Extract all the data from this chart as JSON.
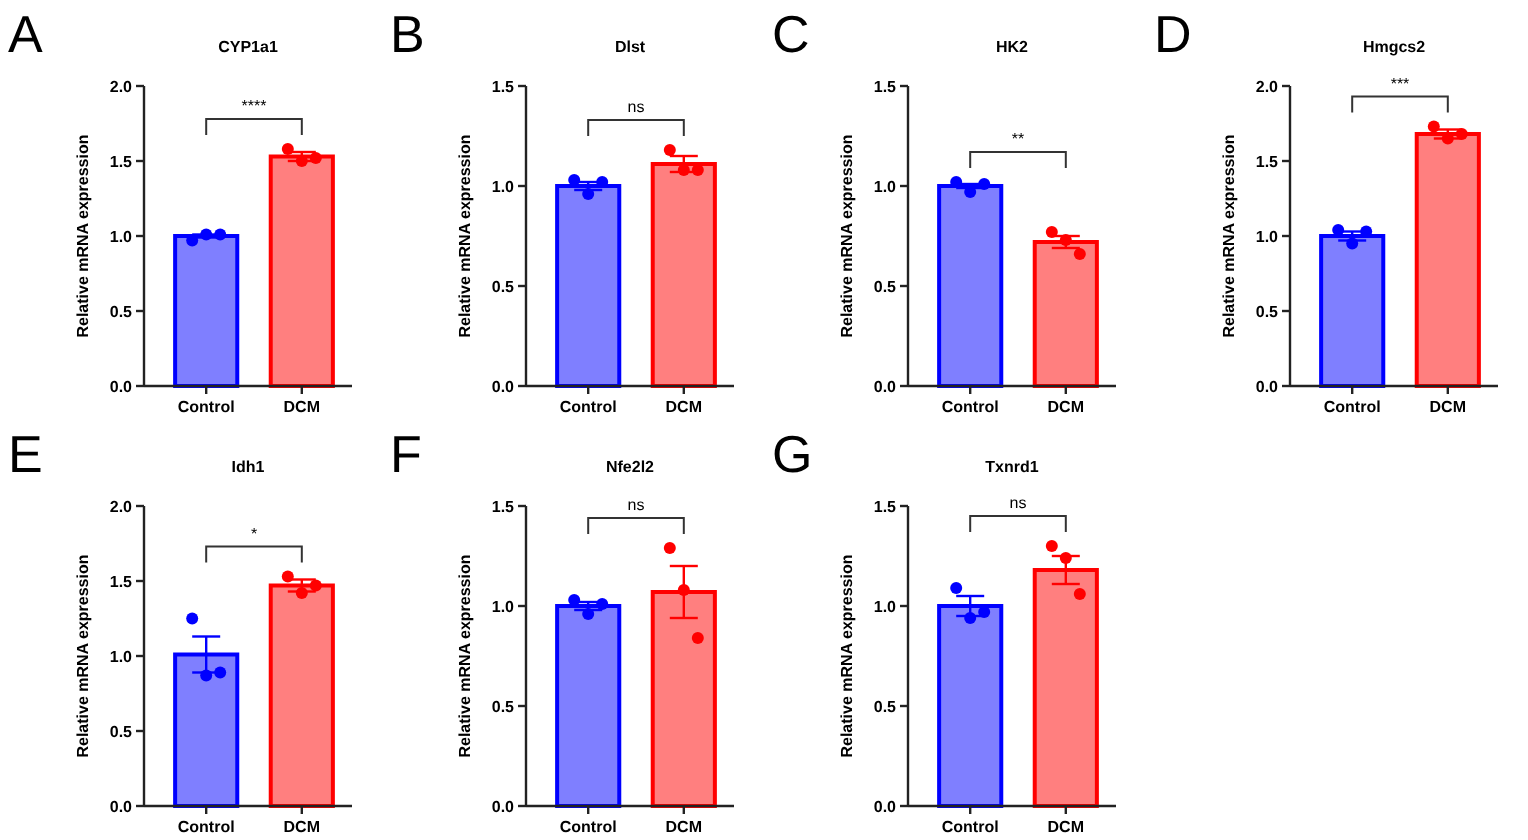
{
  "chart_data": [
    {
      "type": "bar",
      "title": "CYP1a1",
      "annotations": [
        "A",
        "****"
      ],
      "ylabel": "Relative mRNA expression",
      "categories": [
        "Control",
        "DCM"
      ],
      "ylim": [
        0,
        2
      ],
      "yticks": [
        {
          "value": 0,
          "label": "0.0"
        },
        {
          "value": 0.5,
          "label": "0.5"
        },
        {
          "value": 1,
          "label": "1.0"
        },
        {
          "value": 1.5,
          "label": "1.5"
        },
        {
          "value": 2,
          "label": "2.0"
        }
      ],
      "series": [
        {
          "type": "bar",
          "values": [
            1.0,
            1.53
          ],
          "colors": [
            "#0000ff",
            "#ff0000"
          ],
          "errors": [
            0.01,
            0.03
          ]
        },
        {
          "type": "scatter",
          "x": [
            "Control",
            "Control",
            "Control",
            "DCM",
            "DCM",
            "DCM"
          ],
          "values": [
            0.97,
            1.01,
            1.01,
            1.58,
            1.5,
            1.52
          ],
          "colors": [
            "#0000ff",
            "#0000ff",
            "#0000ff",
            "#ff0000",
            "#ff0000",
            "#ff0000"
          ]
        }
      ]
    },
    {
      "type": "bar",
      "title": "Dlst",
      "annotations": [
        "B",
        "ns"
      ],
      "ylabel": "Relative mRNA expression",
      "categories": [
        "Control",
        "DCM"
      ],
      "ylim": [
        0,
        1.5
      ],
      "yticks": [
        {
          "value": 0,
          "label": "0.0"
        },
        {
          "value": 0.5,
          "label": "0.5"
        },
        {
          "value": 1,
          "label": "1.0"
        },
        {
          "value": 1.5,
          "label": "1.5"
        }
      ],
      "series": [
        {
          "type": "bar",
          "values": [
            1.0,
            1.11
          ],
          "colors": [
            "#0000ff",
            "#ff0000"
          ],
          "errors": [
            0.02,
            0.04
          ]
        },
        {
          "type": "scatter",
          "x": [
            "Control",
            "Control",
            "Control",
            "DCM",
            "DCM",
            "DCM"
          ],
          "values": [
            1.03,
            0.96,
            1.02,
            1.18,
            1.08,
            1.08
          ],
          "colors": [
            "#0000ff",
            "#0000ff",
            "#0000ff",
            "#ff0000",
            "#ff0000",
            "#ff0000"
          ]
        }
      ]
    },
    {
      "type": "bar",
      "title": "HK2",
      "annotations": [
        "C",
        "**"
      ],
      "ylabel": "Relative mRNA expression",
      "categories": [
        "Control",
        "DCM"
      ],
      "ylim": [
        0,
        1.5
      ],
      "yticks": [
        {
          "value": 0,
          "label": "0.0"
        },
        {
          "value": 0.5,
          "label": "0.5"
        },
        {
          "value": 1,
          "label": "1.0"
        },
        {
          "value": 1.5,
          "label": "1.5"
        }
      ],
      "series": [
        {
          "type": "bar",
          "values": [
            1.0,
            0.72
          ],
          "colors": [
            "#0000ff",
            "#ff0000"
          ],
          "errors": [
            0.01,
            0.03
          ]
        },
        {
          "type": "scatter",
          "x": [
            "Control",
            "Control",
            "Control",
            "DCM",
            "DCM",
            "DCM"
          ],
          "values": [
            1.02,
            0.97,
            1.01,
            0.77,
            0.73,
            0.66
          ],
          "colors": [
            "#0000ff",
            "#0000ff",
            "#0000ff",
            "#ff0000",
            "#ff0000",
            "#ff0000"
          ]
        }
      ]
    },
    {
      "type": "bar",
      "title": "Hmgcs2",
      "annotations": [
        "D",
        "***"
      ],
      "ylabel": "Relative mRNA expression",
      "categories": [
        "Control",
        "DCM"
      ],
      "ylim": [
        0,
        2
      ],
      "yticks": [
        {
          "value": 0,
          "label": "0.0"
        },
        {
          "value": 0.5,
          "label": "0.5"
        },
        {
          "value": 1,
          "label": "1.0"
        },
        {
          "value": 1.5,
          "label": "1.5"
        },
        {
          "value": 2,
          "label": "2.0"
        }
      ],
      "series": [
        {
          "type": "bar",
          "values": [
            1.0,
            1.68
          ],
          "colors": [
            "#0000ff",
            "#ff0000"
          ],
          "errors": [
            0.03,
            0.03
          ]
        },
        {
          "type": "scatter",
          "x": [
            "Control",
            "Control",
            "Control",
            "DCM",
            "DCM",
            "DCM"
          ],
          "values": [
            1.04,
            0.95,
            1.03,
            1.73,
            1.65,
            1.68
          ],
          "colors": [
            "#0000ff",
            "#0000ff",
            "#0000ff",
            "#ff0000",
            "#ff0000",
            "#ff0000"
          ]
        }
      ]
    },
    {
      "type": "bar",
      "title": "Idh1",
      "annotations": [
        "E",
        "*"
      ],
      "ylabel": "Relative mRNA expression",
      "categories": [
        "Control",
        "DCM"
      ],
      "ylim": [
        0,
        2
      ],
      "yticks": [
        {
          "value": 0,
          "label": "0.0"
        },
        {
          "value": 0.5,
          "label": "0.5"
        },
        {
          "value": 1,
          "label": "1.0"
        },
        {
          "value": 1.5,
          "label": "1.5"
        },
        {
          "value": 2,
          "label": "2.0"
        }
      ],
      "series": [
        {
          "type": "bar",
          "values": [
            1.01,
            1.47
          ],
          "colors": [
            "#0000ff",
            "#ff0000"
          ],
          "errors": [
            0.12,
            0.04
          ]
        },
        {
          "type": "scatter",
          "x": [
            "Control",
            "Control",
            "Control",
            "DCM",
            "DCM",
            "DCM"
          ],
          "values": [
            1.25,
            0.87,
            0.89,
            1.53,
            1.42,
            1.47
          ],
          "colors": [
            "#0000ff",
            "#0000ff",
            "#0000ff",
            "#ff0000",
            "#ff0000",
            "#ff0000"
          ]
        }
      ]
    },
    {
      "type": "bar",
      "title": "Nfe2l2",
      "annotations": [
        "F",
        "ns"
      ],
      "ylabel": "Relative mRNA expression",
      "categories": [
        "Control",
        "DCM"
      ],
      "ylim": [
        0,
        1.5
      ],
      "yticks": [
        {
          "value": 0,
          "label": "0.0"
        },
        {
          "value": 0.5,
          "label": "0.5"
        },
        {
          "value": 1,
          "label": "1.0"
        },
        {
          "value": 1.5,
          "label": "1.5"
        }
      ],
      "series": [
        {
          "type": "bar",
          "values": [
            1.0,
            1.07
          ],
          "colors": [
            "#0000ff",
            "#ff0000"
          ],
          "errors": [
            0.02,
            0.13
          ]
        },
        {
          "type": "scatter",
          "x": [
            "Control",
            "Control",
            "Control",
            "DCM",
            "DCM",
            "DCM"
          ],
          "values": [
            1.03,
            0.96,
            1.01,
            1.29,
            1.08,
            0.84
          ],
          "colors": [
            "#0000ff",
            "#0000ff",
            "#0000ff",
            "#ff0000",
            "#ff0000",
            "#ff0000"
          ]
        }
      ]
    },
    {
      "type": "bar",
      "title": "Txnrd1",
      "annotations": [
        "G",
        "ns"
      ],
      "ylabel": "Relative mRNA expression",
      "categories": [
        "Control",
        "DCM"
      ],
      "ylim": [
        0,
        1.5
      ],
      "yticks": [
        {
          "value": 0,
          "label": "0.0"
        },
        {
          "value": 0.5,
          "label": "0.5"
        },
        {
          "value": 1,
          "label": "1.0"
        },
        {
          "value": 1.5,
          "label": "1.5"
        }
      ],
      "series": [
        {
          "type": "bar",
          "values": [
            1.0,
            1.18
          ],
          "colors": [
            "#0000ff",
            "#ff0000"
          ],
          "errors": [
            0.05,
            0.07
          ]
        },
        {
          "type": "scatter",
          "x": [
            "Control",
            "Control",
            "Control",
            "DCM",
            "DCM",
            "DCM"
          ],
          "values": [
            1.09,
            0.94,
            0.97,
            1.3,
            1.24,
            1.06
          ],
          "colors": [
            "#0000ff",
            "#0000ff",
            "#0000ff",
            "#ff0000",
            "#ff0000",
            "#ff0000"
          ]
        }
      ]
    }
  ]
}
